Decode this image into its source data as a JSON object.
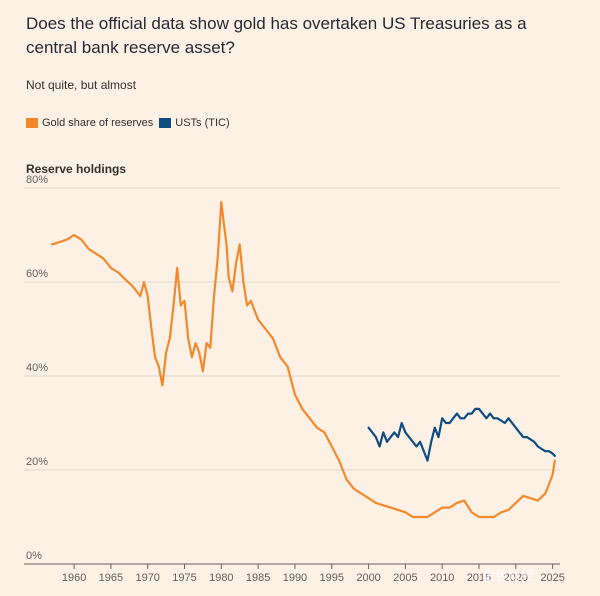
{
  "title": "Does the official data show gold has overtaken US Treasuries as a central bank reserve asset?",
  "subtitle": "Not quite, but almost",
  "colors": {
    "gold": "#f2892a",
    "usts": "#0f4c81",
    "grid": "#e0d6cc",
    "background": "#fdf1e6"
  },
  "legend": [
    {
      "label": "Gold share of reserves",
      "color": "#f2892a"
    },
    {
      "label": "USTs (TIC)",
      "color": "#0f4c81"
    }
  ],
  "watermark": "金色财经",
  "chart_data": {
    "type": "line",
    "title": "Does the official data show gold has overtaken US Treasuries as a central bank reserve asset?",
    "subtitle": "Not quite, but almost",
    "ylabel": "Reserve holdings",
    "xlabel": "",
    "xlim": [
      1957,
      2026
    ],
    "ylim": [
      0,
      80
    ],
    "y_ticks": [
      0,
      20,
      40,
      60,
      80
    ],
    "y_tick_labels": [
      "0%",
      "20%",
      "40%",
      "60%",
      "80%"
    ],
    "x_ticks": [
      1960,
      1965,
      1970,
      1975,
      1980,
      1985,
      1990,
      1995,
      2000,
      2005,
      2010,
      2015,
      2020,
      2025
    ],
    "x_tick_labels": [
      "1960",
      "1965",
      "1970",
      "1975",
      "1980",
      "1985",
      "1990",
      "1995",
      "2000",
      "2005",
      "2010",
      "2015",
      "2020",
      "2025"
    ],
    "grid": true,
    "series": [
      {
        "name": "Gold share of reserves",
        "color": "#f2892a",
        "x": [
          1957,
          1958,
          1959,
          1960,
          1960.5,
          1961,
          1962,
          1963,
          1964,
          1965,
          1966,
          1967,
          1968,
          1969,
          1969.5,
          1970,
          1970.5,
          1971,
          1971.5,
          1972,
          1972.5,
          1973,
          1973.5,
          1974,
          1974.5,
          1975,
          1975.5,
          1976,
          1976.5,
          1977,
          1977.5,
          1978,
          1978.5,
          1979,
          1979.5,
          1980,
          1980.3,
          1980.7,
          1981,
          1981.5,
          1982,
          1982.5,
          1983,
          1983.5,
          1984,
          1985,
          1986,
          1987,
          1988,
          1989,
          1990,
          1991,
          1992,
          1993,
          1994,
          1995,
          1996,
          1997,
          1998,
          1999,
          2000,
          2001,
          2002,
          2003,
          2004,
          2005,
          2006,
          2007,
          2008,
          2009,
          2010,
          2011,
          2012,
          2013,
          2014,
          2015,
          2016,
          2017,
          2018,
          2019,
          2020,
          2021,
          2022,
          2023,
          2024,
          2024.5,
          2025,
          2025.3
        ],
        "values": [
          68,
          68.5,
          69,
          70,
          69.5,
          69,
          67,
          66,
          65,
          63,
          62,
          60.5,
          59,
          57,
          60,
          57,
          50,
          44,
          42,
          38,
          45,
          48,
          55,
          63,
          55,
          56,
          48,
          44,
          47,
          45,
          41,
          47,
          46,
          57,
          65,
          77,
          73,
          68,
          61,
          58,
          64,
          68,
          60,
          55,
          56,
          52,
          50,
          48,
          44,
          42,
          36,
          33,
          31,
          29,
          28,
          25,
          22,
          18,
          16,
          15,
          14,
          13,
          12.5,
          12,
          11.5,
          11,
          10,
          10,
          10,
          11,
          12,
          12,
          13,
          13.5,
          11,
          10,
          10,
          10,
          11,
          11.5,
          13,
          14.5,
          14,
          13.5,
          15,
          17,
          19,
          22
        ]
      },
      {
        "name": "USTs (TIC)",
        "color": "#0f4c81",
        "x": [
          2000,
          2000.5,
          2001,
          2001.5,
          2002,
          2002.5,
          2003,
          2003.5,
          2004,
          2004.5,
          2005,
          2005.5,
          2006,
          2006.5,
          2007,
          2007.5,
          2008,
          2008.5,
          2009,
          2009.5,
          2010,
          2010.5,
          2011,
          2011.5,
          2012,
          2012.5,
          2013,
          2013.5,
          2014,
          2014.5,
          2015,
          2015.5,
          2016,
          2016.5,
          2017,
          2017.5,
          2018,
          2018.5,
          2019,
          2019.5,
          2020,
          2020.5,
          2021,
          2021.5,
          2022,
          2022.5,
          2023,
          2023.5,
          2024,
          2024.5,
          2025,
          2025.3
        ],
        "values": [
          29,
          28,
          27,
          25,
          28,
          26,
          27,
          28,
          27,
          30,
          28,
          27,
          26,
          25,
          26,
          24,
          22,
          26,
          29,
          27,
          31,
          30,
          30,
          31,
          32,
          31,
          31,
          32,
          32,
          33,
          33,
          32,
          31,
          32,
          31,
          31,
          30.5,
          30,
          31,
          30,
          29,
          28,
          27,
          27,
          26.5,
          26,
          25,
          24.5,
          24,
          24,
          23.5,
          23
        ]
      }
    ]
  }
}
